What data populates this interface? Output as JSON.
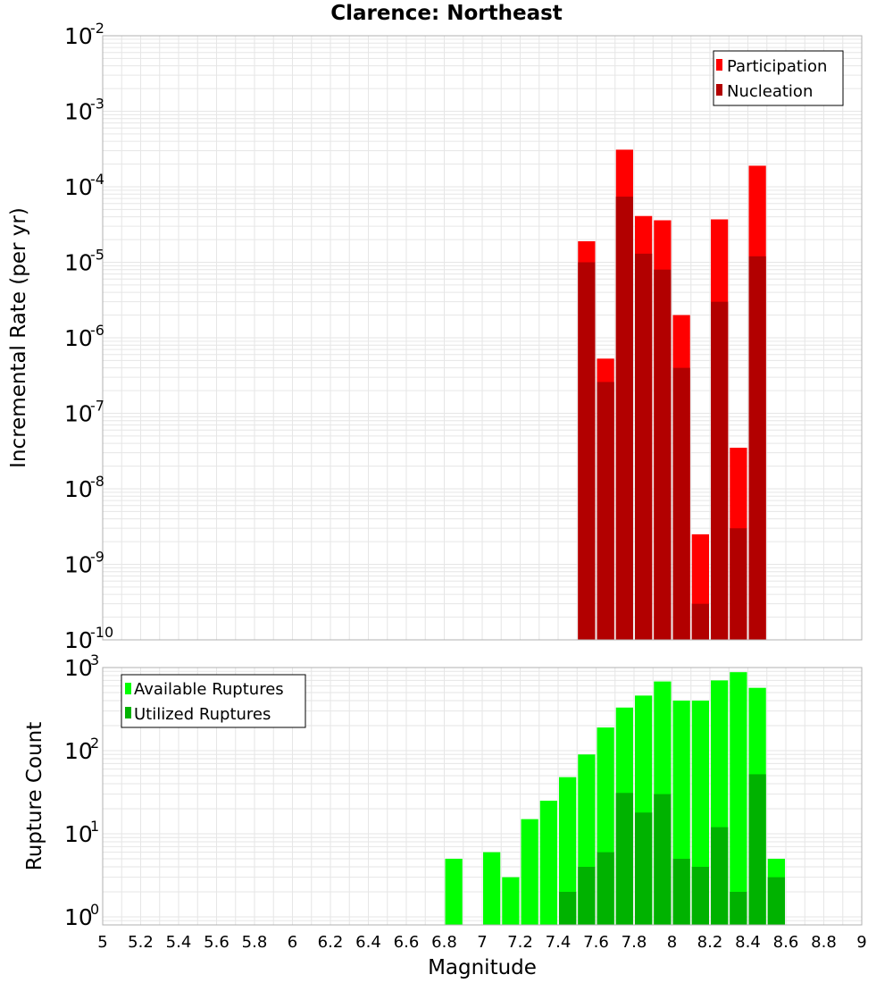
{
  "title": "Clarence: Northeast",
  "xlabel": "Magnitude",
  "colors": {
    "participation": "#ff0000",
    "nucleation": "#b20000",
    "available": "#00ff00",
    "utilized": "#00b200",
    "grid": "#e6e6e6",
    "frame": "#b0b0b0"
  },
  "chart_data": [
    {
      "type": "bar",
      "ylabel": "Incremental Rate (per yr)",
      "y_scale": "log",
      "ylim": [
        1e-10,
        0.01
      ],
      "xlim": [
        5,
        9
      ],
      "y_ticks": [
        {
          "base": "10",
          "exp": "-10"
        },
        {
          "base": "10",
          "exp": "-9"
        },
        {
          "base": "10",
          "exp": "-8"
        },
        {
          "base": "10",
          "exp": "-7"
        },
        {
          "base": "10",
          "exp": "-6"
        },
        {
          "base": "10",
          "exp": "-5"
        },
        {
          "base": "10",
          "exp": "-4"
        },
        {
          "base": "10",
          "exp": "-3"
        },
        {
          "base": "10",
          "exp": "-2"
        }
      ],
      "legend_position": "top-right",
      "legend": [
        "Participation",
        "Nucleation"
      ],
      "bin_width": 0.1,
      "series": [
        {
          "name": "Participation",
          "x": [
            7.55,
            7.65,
            7.75,
            7.85,
            7.95,
            8.05,
            8.15,
            8.25,
            8.35,
            8.45
          ],
          "values": [
            1.9e-05,
            5.3e-07,
            0.00031,
            4.1e-05,
            3.6e-05,
            2e-06,
            2.5e-09,
            3.7e-05,
            3.5e-08,
            0.00019
          ]
        },
        {
          "name": "Nucleation",
          "x": [
            7.55,
            7.65,
            7.75,
            7.85,
            7.95,
            8.05,
            8.15,
            8.25,
            8.35,
            8.45
          ],
          "values": [
            1e-05,
            2.6e-07,
            7.4e-05,
            1.3e-05,
            8e-06,
            4e-07,
            3e-10,
            3e-06,
            3e-09,
            1.2e-05
          ]
        }
      ]
    },
    {
      "type": "bar",
      "ylabel": "Rupture Count",
      "y_scale": "log",
      "ylim": [
        0.8,
        1000
      ],
      "xlim": [
        5,
        9
      ],
      "y_ticks": [
        {
          "base": "10",
          "exp": "0"
        },
        {
          "base": "10",
          "exp": "1"
        },
        {
          "base": "10",
          "exp": "2"
        },
        {
          "base": "10",
          "exp": "3"
        }
      ],
      "x_ticks": [
        "5",
        "5.2",
        "5.4",
        "5.6",
        "5.8",
        "6",
        "6.2",
        "6.4",
        "6.6",
        "6.8",
        "7",
        "7.2",
        "7.4",
        "7.6",
        "7.8",
        "8",
        "8.2",
        "8.4",
        "8.6",
        "8.8",
        "9"
      ],
      "legend_position": "top-left",
      "legend": [
        "Available Ruptures",
        "Utilized Ruptures"
      ],
      "bin_width": 0.1,
      "series": [
        {
          "name": "Available Ruptures",
          "x": [
            6.85,
            7.05,
            7.15,
            7.25,
            7.35,
            7.45,
            7.55,
            7.65,
            7.75,
            7.85,
            7.95,
            8.05,
            8.15,
            8.25,
            8.35,
            8.45,
            8.55
          ],
          "values": [
            5,
            6,
            3,
            15,
            25,
            48,
            90,
            190,
            330,
            460,
            680,
            400,
            400,
            700,
            880,
            570,
            5
          ]
        },
        {
          "name": "Utilized Ruptures",
          "x": [
            7.45,
            7.55,
            7.65,
            7.75,
            7.85,
            7.95,
            8.05,
            8.15,
            8.25,
            8.35,
            8.45,
            8.55
          ],
          "values": [
            2,
            4,
            6,
            31,
            18,
            30,
            5,
            4,
            12,
            2,
            52,
            3
          ]
        }
      ]
    }
  ]
}
